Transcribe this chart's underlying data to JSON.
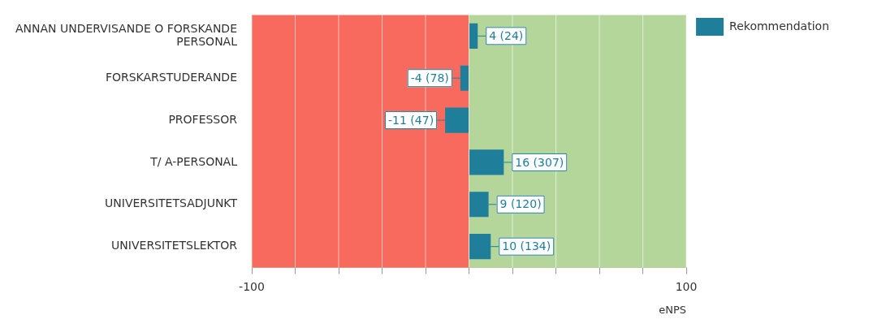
{
  "chart_data": {
    "type": "bar",
    "orientation": "horizontal",
    "xlabel": "eNPS",
    "categories": [
      "ANNAN UNDERVISANDE O FORSKANDE PERSONAL",
      "FORSKARSTUDERANDE",
      "PROFESSOR",
      "T/ A-PERSONAL",
      "UNIVERSITETSADJUNKT",
      "UNIVERSITETSLEKTOR"
    ],
    "series": [
      {
        "name": "Rekommendation",
        "color": "#1f7f9a",
        "values": [
          4,
          -4,
          -11,
          16,
          9,
          10
        ],
        "value_labels": [
          "4 (24)",
          "-4 (78)",
          "-11 (47)",
          "16 (307)",
          "9 (120)",
          "10 (134)"
        ]
      }
    ],
    "xlim": [
      -100,
      100
    ],
    "xticks": [
      -100,
      {
        "value": -80,
        "label": null
      },
      {
        "value": -60,
        "label": null
      },
      {
        "value": -40,
        "label": null
      },
      {
        "value": -20,
        "label": null
      },
      {
        "value": 0,
        "label": null
      },
      {
        "value": 20,
        "label": null
      },
      {
        "value": 40,
        "label": null
      },
      {
        "value": 60,
        "label": null
      },
      {
        "value": 80,
        "label": null
      },
      100
    ],
    "bands": [
      {
        "axis": "x",
        "from": -100,
        "to": 0,
        "color": "#f86a5e"
      },
      {
        "axis": "x",
        "from": 0,
        "to": 100,
        "color": "#b5d69a"
      }
    ],
    "grid": "x",
    "legend": "top right"
  }
}
